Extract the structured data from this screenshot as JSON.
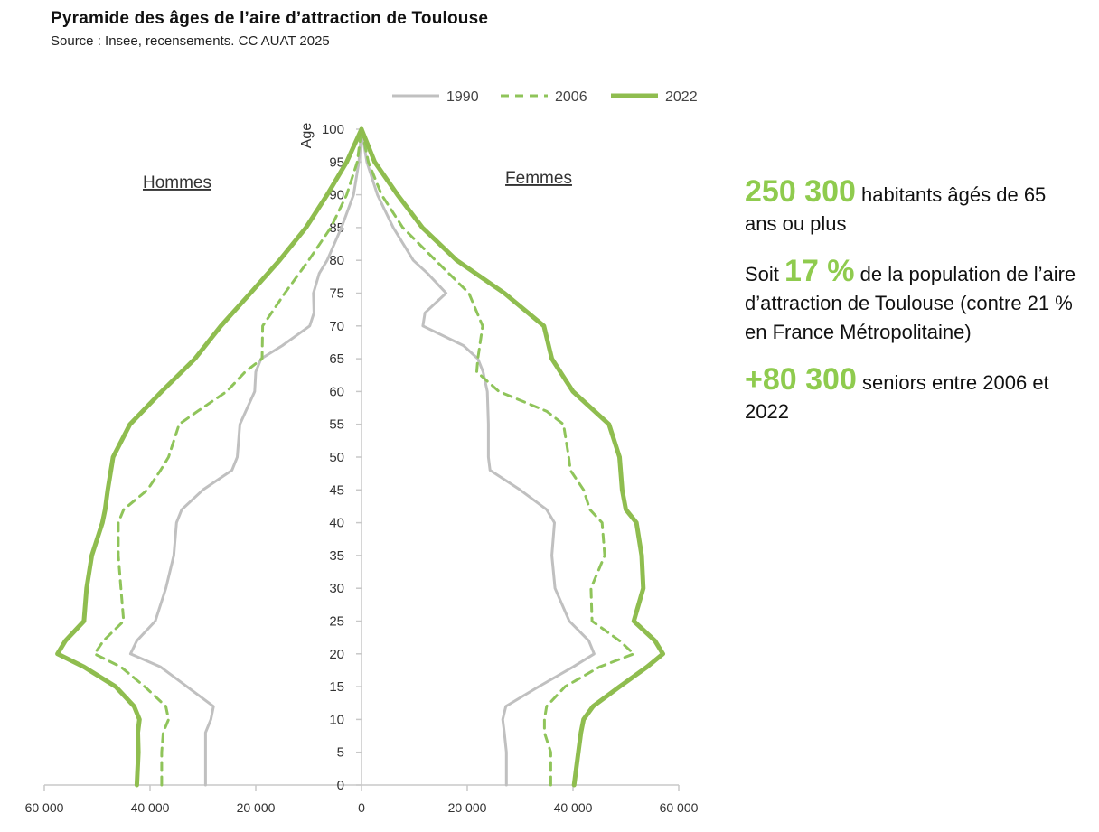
{
  "header": {
    "title": "Pyramide des âges de l’aire d’attraction de Toulouse",
    "source": "Source : Insee, recensements. CC AUAT 2025"
  },
  "chart_data": {
    "type": "line",
    "orientation": "population-pyramid",
    "ylabel": "Age",
    "left_label": "Hommes",
    "right_label": "Femmes",
    "xlim": [
      -60000,
      60000
    ],
    "ylim": [
      0,
      100
    ],
    "x_ticks": [
      {
        "value": -60000,
        "label": "60 000"
      },
      {
        "value": -40000,
        "label": "40 000"
      },
      {
        "value": -20000,
        "label": "20 000"
      },
      {
        "value": 0,
        "label": "0"
      },
      {
        "value": 20000,
        "label": "20 000"
      },
      {
        "value": 40000,
        "label": "40 000"
      },
      {
        "value": 60000,
        "label": "60 000"
      }
    ],
    "y_ticks": [
      0,
      5,
      10,
      15,
      20,
      25,
      30,
      35,
      40,
      45,
      50,
      55,
      60,
      65,
      70,
      75,
      80,
      85,
      90,
      95,
      100
    ],
    "legend_position": "top",
    "series": [
      {
        "name": "1990",
        "color": "#c0c0c0",
        "style": "solid",
        "width": 3,
        "age": [
          0,
          5,
          8,
          10,
          12,
          15,
          18,
          20,
          22,
          25,
          30,
          35,
          40,
          42,
          45,
          48,
          50,
          55,
          60,
          63,
          65,
          67,
          70,
          72,
          75,
          78,
          80,
          85,
          90,
          95,
          100
        ],
        "hommes": [
          29500,
          29500,
          29500,
          28500,
          28000,
          33000,
          38000,
          43700,
          42500,
          39000,
          37000,
          35500,
          35000,
          34000,
          30000,
          24500,
          23500,
          23000,
          20200,
          20000,
          19000,
          15000,
          9800,
          9000,
          9100,
          8000,
          6500,
          3800,
          1500,
          500,
          0
        ],
        "femmes": [
          27400,
          27400,
          27000,
          26700,
          27300,
          33500,
          40000,
          44000,
          43000,
          39300,
          36600,
          36000,
          36500,
          35000,
          30000,
          24300,
          24000,
          24000,
          23800,
          23000,
          22000,
          19300,
          11600,
          12000,
          16000,
          12500,
          9800,
          6000,
          3000,
          1000,
          0
        ]
      },
      {
        "name": "2006",
        "color": "#8fc45a",
        "style": "dashed",
        "width": 3,
        "age": [
          0,
          5,
          8,
          10,
          12,
          15,
          18,
          20,
          22,
          25,
          30,
          35,
          40,
          42,
          45,
          48,
          50,
          55,
          57,
          60,
          63,
          65,
          70,
          75,
          80,
          85,
          90,
          95,
          100
        ],
        "hommes": [
          37800,
          37800,
          37500,
          36500,
          37000,
          41000,
          45500,
          50500,
          48800,
          45000,
          45500,
          46000,
          46000,
          45000,
          40500,
          38000,
          36500,
          34500,
          31000,
          25500,
          22000,
          18800,
          18700,
          14500,
          10000,
          5800,
          2800,
          800,
          0
        ],
        "femmes": [
          35800,
          35800,
          34600,
          34600,
          35000,
          38500,
          45000,
          51500,
          48800,
          43600,
          43400,
          46000,
          45500,
          43200,
          42000,
          39500,
          39200,
          38200,
          35000,
          26000,
          21800,
          22000,
          22900,
          20300,
          14000,
          7800,
          3800,
          1300,
          0
        ]
      },
      {
        "name": "2022",
        "color": "#8fbd4f",
        "style": "solid",
        "width": 5,
        "age": [
          0,
          5,
          8,
          10,
          12,
          15,
          18,
          20,
          22,
          25,
          30,
          35,
          40,
          42,
          45,
          50,
          55,
          60,
          65,
          70,
          75,
          80,
          85,
          90,
          95,
          100
        ],
        "hommes": [
          42500,
          42200,
          42300,
          42000,
          43000,
          46500,
          52500,
          57500,
          56000,
          52500,
          52000,
          51000,
          49000,
          48500,
          48000,
          47000,
          43800,
          37800,
          31500,
          26600,
          21000,
          15500,
          10500,
          6500,
          2800,
          0
        ],
        "femmes": [
          40200,
          41000,
          41500,
          42000,
          43800,
          48800,
          54000,
          57000,
          55500,
          51500,
          53300,
          53000,
          52000,
          50000,
          49300,
          48800,
          46800,
          40000,
          36000,
          34500,
          27000,
          18000,
          11500,
          6800,
          2500,
          0
        ]
      }
    ]
  },
  "stats": {
    "line1": {
      "big": "250 300",
      "text": " habitants âgés de 65 ans ou plus"
    },
    "line2": {
      "before": "Soit ",
      "big": "17 %",
      "text": " de la population de l’aire d’attraction de Toulouse (contre 21 % en France Métropolitaine)"
    },
    "line3": {
      "big": "+80 300",
      "text": " seniors entre 2006 et 2022"
    },
    "accent_color": "#8fcb4e"
  }
}
